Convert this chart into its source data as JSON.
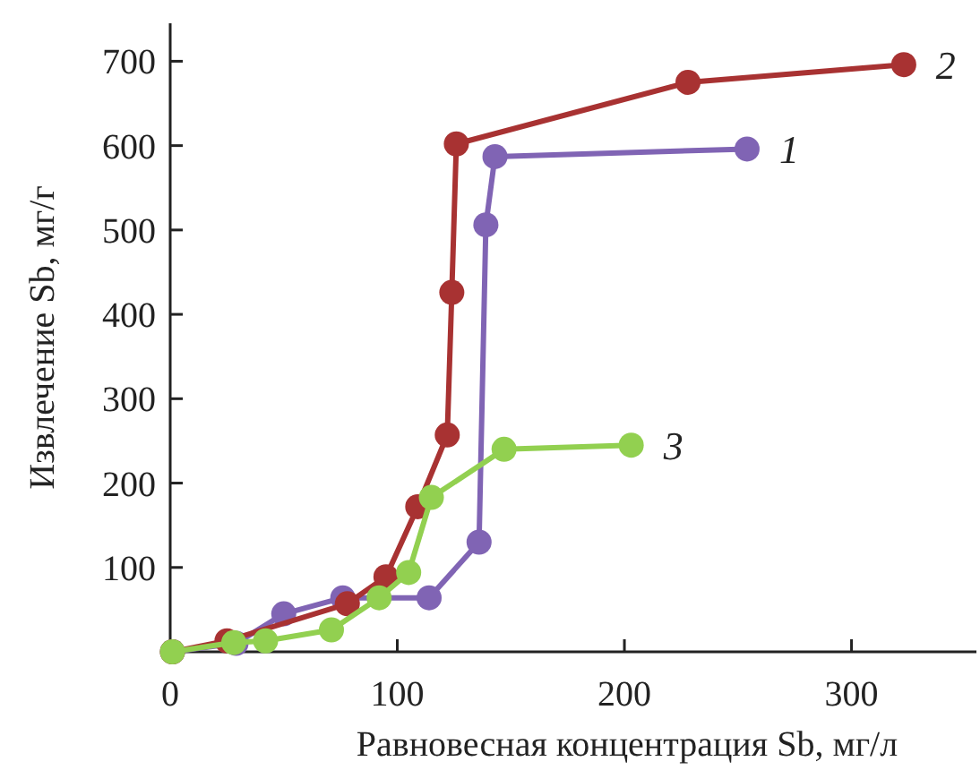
{
  "chart_data": {
    "type": "line",
    "xlabel": "Равновесная концентрация Sb, мг/л",
    "ylabel": "Извлечение Sb, мг/г",
    "xlim": [
      0,
      355
    ],
    "xticks": [
      0,
      100,
      200,
      300
    ],
    "ylim": [
      0,
      745
    ],
    "yticks": [
      100,
      200,
      300,
      400,
      500,
      600,
      700
    ],
    "grid": false,
    "legend": false,
    "marker": "circle",
    "line_style": "solid",
    "series": [
      {
        "name": "1",
        "color": "#8064b4",
        "x": [
          1,
          29,
          50,
          76,
          114,
          136,
          139,
          143,
          254
        ],
        "values": [
          0,
          10,
          45,
          64,
          64,
          130,
          506,
          587,
          596
        ]
      },
      {
        "name": "2",
        "color": "#a83232",
        "x": [
          1,
          25,
          78,
          95,
          109,
          122,
          124,
          126,
          228,
          323
        ],
        "values": [
          0,
          13,
          57,
          89,
          172,
          257,
          426,
          602,
          675,
          696
        ]
      },
      {
        "name": "3",
        "color": "#92d050",
        "x": [
          1,
          28,
          42,
          71,
          92,
          105,
          115,
          147,
          203
        ],
        "values": [
          0,
          11,
          13,
          26,
          64,
          94,
          183,
          240,
          245
        ]
      }
    ]
  }
}
